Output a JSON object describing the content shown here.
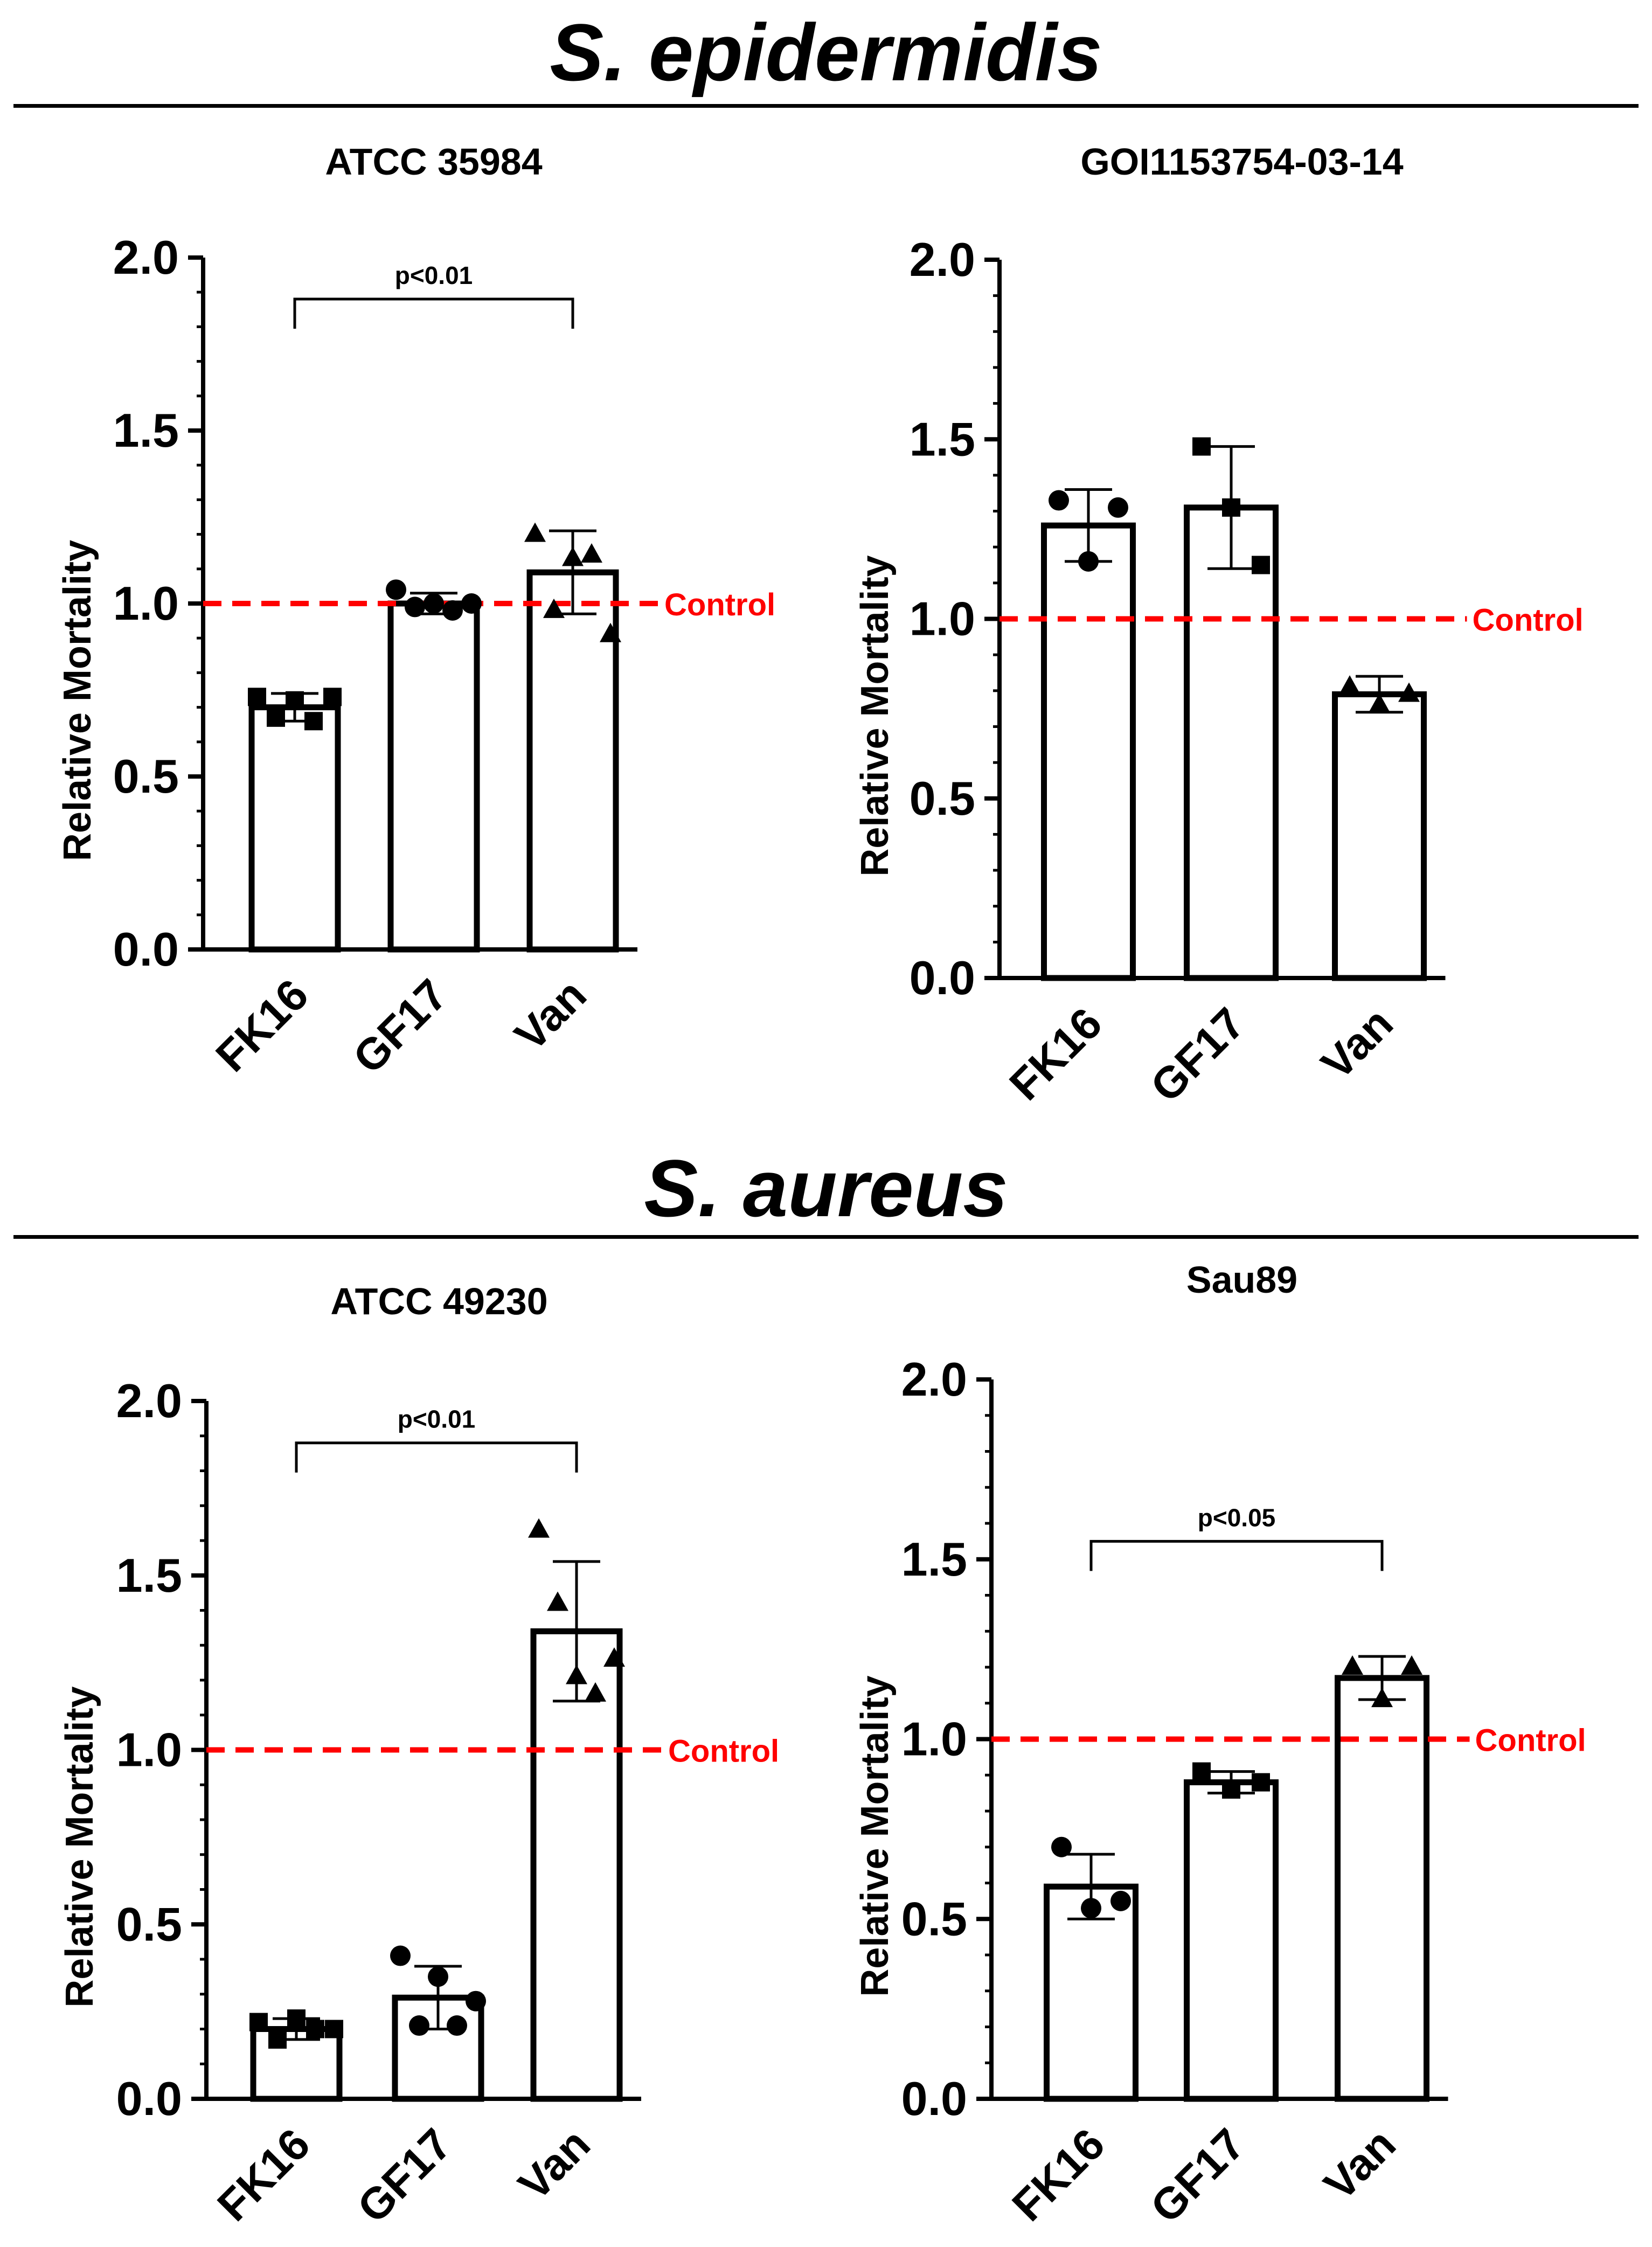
{
  "sections": [
    {
      "title": "S. epidermidis"
    },
    {
      "title": "S. aureus"
    }
  ],
  "chart_data": [
    {
      "type": "bar",
      "title": "ATCC 35984",
      "ylabel": "Relative Mortality",
      "xlabel": "",
      "categories": [
        "FK16",
        "GF17",
        "Van"
      ],
      "values": [
        0.7,
        1.0,
        1.09
      ],
      "errors": [
        0.04,
        0.03,
        0.12
      ],
      "points": [
        [
          0.73,
          0.67,
          0.72,
          0.66,
          0.73
        ],
        [
          1.04,
          0.99,
          1.0,
          0.98,
          1.0
        ],
        [
          1.2,
          0.98,
          1.13,
          1.14,
          0.91
        ]
      ],
      "markers": [
        "square",
        "circle",
        "triangle"
      ],
      "ylim": [
        0,
        2.0
      ],
      "yticks": [
        "0.0",
        "0.5",
        "1.0",
        "1.5",
        "2.0"
      ],
      "control": {
        "value": 1.0,
        "label": "Control",
        "color": "#ff0000"
      },
      "significance": {
        "from": "FK16",
        "to": "Van",
        "label": "p<0.01"
      }
    },
    {
      "type": "bar",
      "title": "GOI1153754-03-14",
      "ylabel": "Relative Mortality",
      "xlabel": "",
      "categories": [
        "FK16",
        "GF17",
        "Van"
      ],
      "values": [
        1.26,
        1.31,
        0.79
      ],
      "errors": [
        0.1,
        0.17,
        0.05
      ],
      "points": [
        [
          1.33,
          1.16,
          1.31
        ],
        [
          1.48,
          1.31,
          1.15
        ],
        [
          0.81,
          0.76,
          0.79
        ]
      ],
      "markers": [
        "circle",
        "square",
        "triangle"
      ],
      "ylim": [
        0,
        2.0
      ],
      "yticks": [
        "0.0",
        "0.5",
        "1.0",
        "1.5",
        "2.0"
      ],
      "control": {
        "value": 1.0,
        "label": "Control",
        "color": "#ff0000"
      },
      "significance": null
    },
    {
      "type": "bar",
      "title": "ATCC 49230",
      "ylabel": "Relative Mortality",
      "xlabel": "",
      "categories": [
        "FK16",
        "GF17",
        "Van"
      ],
      "values": [
        0.2,
        0.29,
        1.34
      ],
      "errors": [
        0.03,
        0.09,
        0.2
      ],
      "points": [
        [
          0.22,
          0.17,
          0.23,
          0.2,
          0.2
        ],
        [
          0.41,
          0.21,
          0.35,
          0.21,
          0.28
        ],
        [
          1.63,
          1.42,
          1.21,
          1.16,
          1.26
        ]
      ],
      "markers": [
        "square",
        "circle",
        "triangle"
      ],
      "ylim": [
        0,
        2.0
      ],
      "yticks": [
        "0.0",
        "0.5",
        "1.0",
        "1.5",
        "2.0"
      ],
      "control": {
        "value": 1.0,
        "label": "Control",
        "color": "#ff0000"
      },
      "significance": {
        "from": "FK16",
        "to": "Van",
        "label": "p<0.01"
      }
    },
    {
      "type": "bar",
      "title": "Sau89",
      "ylabel": "Relative Mortality",
      "xlabel": "",
      "categories": [
        "FK16",
        "GF17",
        "Van"
      ],
      "values": [
        0.59,
        0.88,
        1.17
      ],
      "errors": [
        0.09,
        0.03,
        0.06
      ],
      "points": [
        [
          0.7,
          0.53,
          0.55
        ],
        [
          0.91,
          0.86,
          0.88
        ],
        [
          1.2,
          1.11,
          1.2
        ]
      ],
      "markers": [
        "circle",
        "square",
        "triangle"
      ],
      "ylim": [
        0,
        2.0
      ],
      "yticks": [
        "0.0",
        "0.5",
        "1.0",
        "1.5",
        "2.0"
      ],
      "control": {
        "value": 1.0,
        "label": "Control",
        "color": "#ff0000"
      },
      "significance": {
        "from": "FK16",
        "to": "Van",
        "label": "p<0.05"
      }
    }
  ]
}
